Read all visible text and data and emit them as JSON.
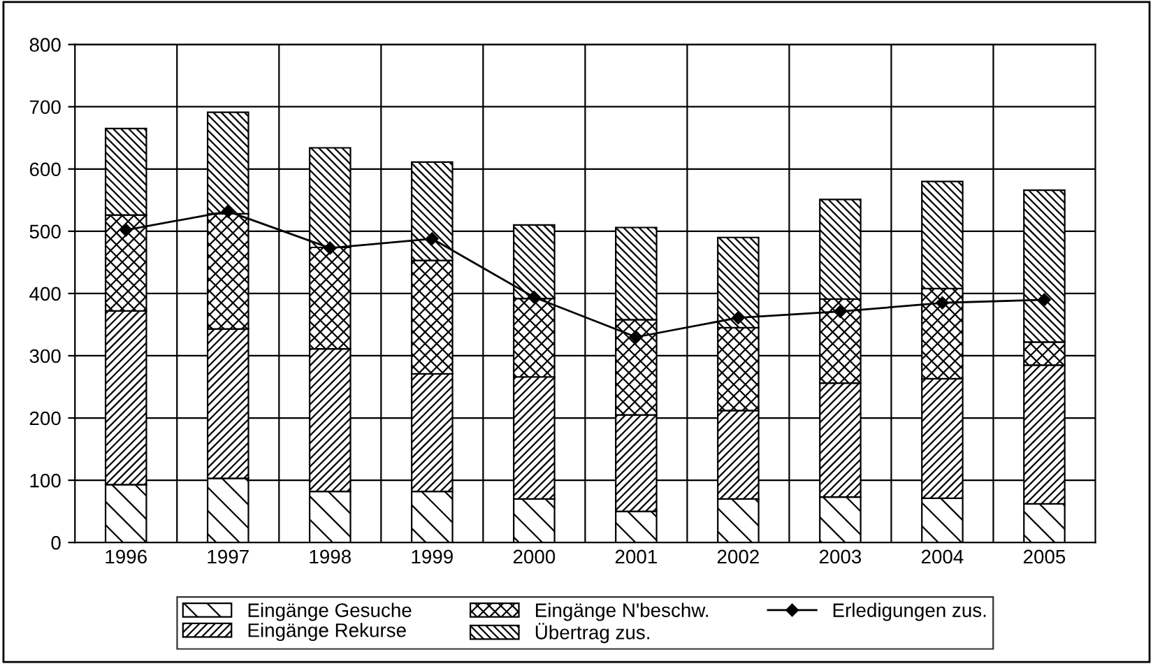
{
  "chart_data": {
    "type": "bar",
    "stacked": true,
    "categories": [
      "1996",
      "1997",
      "1998",
      "1999",
      "2000",
      "2001",
      "2002",
      "2003",
      "2004",
      "2005"
    ],
    "series": [
      {
        "name": "Eingänge Gesuche",
        "color": "#000000",
        "values": [
          93,
          103,
          82,
          82,
          70,
          50,
          70,
          73,
          71,
          62
        ]
      },
      {
        "name": "Eingänge Rekurse",
        "color": "#000000",
        "values": [
          279,
          240,
          229,
          189,
          196,
          155,
          142,
          183,
          192,
          223
        ]
      },
      {
        "name": "Eingänge N'beschw.",
        "color": "#000000",
        "values": [
          154,
          185,
          163,
          182,
          126,
          153,
          133,
          135,
          145,
          37
        ]
      },
      {
        "name": "Übertrag zus.",
        "color": "#000000",
        "values": [
          139,
          163,
          160,
          158,
          118,
          148,
          145,
          160,
          172,
          244
        ]
      },
      {
        "name": "Erledigungen zus.",
        "type": "line",
        "color": "#000000",
        "marker": "diamond",
        "values": [
          502,
          532,
          473,
          488,
          394,
          330,
          361,
          371,
          385,
          390
        ]
      }
    ],
    "ylim": [
      0,
      800
    ],
    "yticks": [
      0,
      100,
      200,
      300,
      400,
      500,
      600,
      700,
      800
    ],
    "grid": true,
    "legend": "bottom"
  }
}
